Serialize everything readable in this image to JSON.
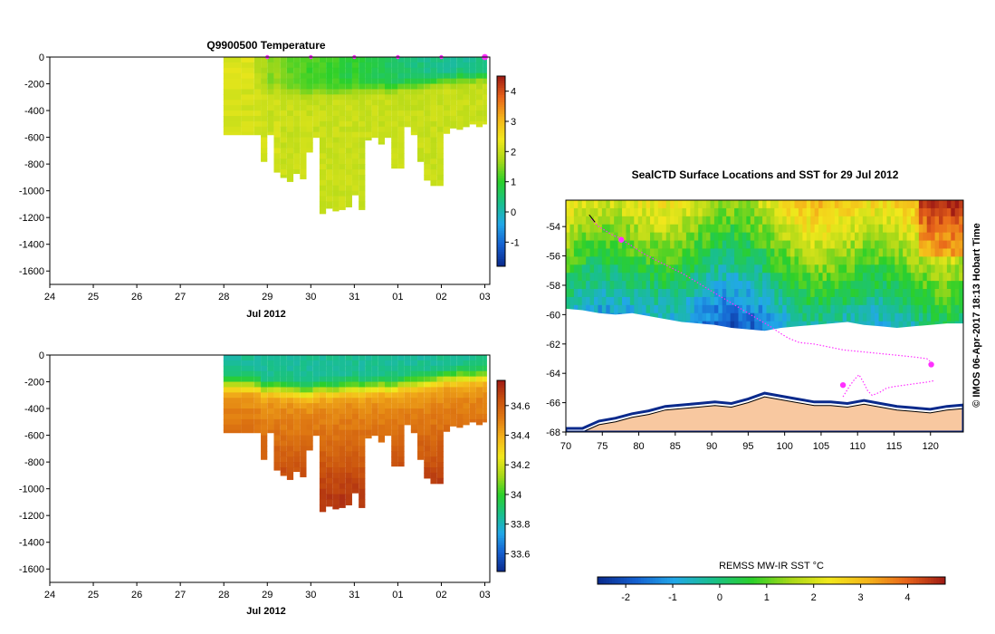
{
  "colors": {
    "temp_ramp": [
      "#0a2a8c",
      "#1560d0",
      "#22a8e8",
      "#19c08a",
      "#2bd02a",
      "#a8d818",
      "#f2e81c",
      "#f4b41a",
      "#e8641a",
      "#9e1a14"
    ],
    "sal_ramp": [
      "#0a2a8c",
      "#1560d0",
      "#22a8e8",
      "#19c08a",
      "#2bd02a",
      "#a8d818",
      "#f2e81c",
      "#f4b41a",
      "#e07a12",
      "#c8500e",
      "#9e1a14"
    ],
    "land": "#f8c8a0",
    "ice": "#ffffff",
    "track": "#ff30ff"
  },
  "chart_data": [
    {
      "type": "heatmap",
      "title": "Q9900500  Temperature",
      "xlabel": "Jul 2012",
      "ylabel": "",
      "xlim": [
        24,
        34.1
      ],
      "ylim": [
        -1700,
        0
      ],
      "xtick_labels": [
        "24",
        "25",
        "26",
        "27",
        "28",
        "29",
        "30",
        "31",
        "01",
        "02",
        "03"
      ],
      "ytick_values": [
        0,
        -200,
        -400,
        -600,
        -800,
        -1000,
        -1200,
        -1400,
        -1600
      ],
      "ytick_labels": [
        "0",
        "-200",
        "-400",
        "-600",
        "-800",
        "-1000",
        "-1200",
        "-1400",
        "-1600"
      ],
      "colorbar": {
        "min": -1.8,
        "max": 4.5,
        "tick_values": [
          4,
          3,
          2,
          1,
          0,
          -1
        ],
        "tick_labels": [
          "4",
          "3",
          "2",
          "1",
          "0",
          "-1"
        ]
      },
      "surface_markers_day": [
        29.0,
        30.0,
        31.0,
        32.0,
        33.0,
        34.0
      ],
      "profile_times": [
        28.2,
        28.4,
        28.7,
        28.85,
        29.0,
        29.15,
        29.3,
        29.45,
        29.6,
        29.75,
        29.9,
        30.05,
        30.2,
        30.35,
        30.5,
        30.65,
        30.8,
        30.95,
        31.1,
        31.25,
        31.4,
        31.55,
        31.7,
        31.85,
        32.0,
        32.15,
        32.3,
        32.45,
        32.6,
        32.75,
        32.9,
        33.05,
        33.2,
        33.35,
        33.5,
        33.65,
        33.8,
        33.95
      ],
      "profile_max_depth": [
        -580,
        -580,
        -580,
        -780,
        -580,
        -860,
        -900,
        -930,
        -870,
        -910,
        -710,
        -600,
        -1170,
        -1130,
        -1150,
        -1140,
        -1120,
        -1030,
        -1140,
        -620,
        -600,
        -650,
        -600,
        -830,
        -830,
        -520,
        -580,
        -780,
        -920,
        -960,
        -960,
        -570,
        -530,
        -540,
        -520,
        -500,
        -520,
        -500
      ],
      "profile_mld": [
        -220,
        -220,
        -230,
        -260,
        -250,
        -250,
        -260,
        -260,
        -270,
        -280,
        -280,
        -260,
        -250,
        -260,
        -260,
        -250,
        -240,
        -240,
        -250,
        -240,
        -240,
        -230,
        -240,
        -230,
        -220,
        -210,
        -210,
        -200,
        -200,
        -190,
        -180,
        -170,
        -170,
        -160,
        -160,
        -160,
        -150,
        -150
      ],
      "temp_surface": [
        2.2,
        2.2,
        1.9,
        1.8,
        1.5,
        1.6,
        1.4,
        1.3,
        1.3,
        1.2,
        1.1,
        1.2,
        1.2,
        1.0,
        1.1,
        0.9,
        0.8,
        1.0,
        0.9,
        0.8,
        0.7,
        0.7,
        0.6,
        0.6,
        0.5,
        0.5,
        0.4,
        0.4,
        0.3,
        0.4,
        0.3,
        0.2,
        0.2,
        0.3,
        0.2,
        0.2,
        0.3,
        0.2
      ],
      "temp_deep": [
        2.1,
        2.1,
        2.1,
        2.1,
        2.0,
        2.1,
        2.0,
        2.0,
        2.0,
        2.0,
        2.0,
        2.0,
        2.0,
        2.0,
        2.0,
        2.0,
        2.0,
        2.0,
        2.0,
        2.0,
        2.0,
        2.0,
        2.0,
        2.0,
        2.0,
        2.0,
        2.0,
        2.0,
        2.0,
        2.0,
        2.0,
        2.0,
        2.0,
        2.0,
        2.0,
        2.0,
        2.0,
        2.0
      ]
    },
    {
      "type": "heatmap",
      "title": "",
      "xlabel": "Jul 2012",
      "ylabel": "",
      "xlim": [
        24,
        34.1
      ],
      "ylim": [
        -1700,
        0
      ],
      "xtick_labels": [
        "24",
        "25",
        "26",
        "27",
        "28",
        "29",
        "30",
        "31",
        "01",
        "02",
        "03"
      ],
      "ytick_values": [
        0,
        -200,
        -400,
        -600,
        -800,
        -1000,
        -1200,
        -1400,
        -1600
      ],
      "ytick_labels": [
        "0",
        "-200",
        "-400",
        "-600",
        "-800",
        "-1000",
        "-1200",
        "-1400",
        "-1600"
      ],
      "colorbar": {
        "min": 33.48,
        "max": 34.77,
        "tick_values": [
          34.6,
          34.4,
          34.2,
          34.0,
          33.8,
          33.6
        ],
        "tick_labels": [
          "34.6",
          "34.4",
          "34.2",
          "34",
          "33.8",
          "33.6"
        ]
      },
      "sal_surface": 33.85,
      "sal_deep": 34.72
    },
    {
      "type": "heatmap",
      "title": "SealCTD Surface Locations and SST for 29 Jul 2012",
      "xlabel": "",
      "ylabel": "",
      "xlim": [
        70,
        124.5
      ],
      "ylim": [
        -68,
        -52.2
      ],
      "xtick_labels": [
        "70",
        "75",
        "80",
        "85",
        "90",
        "95",
        "100",
        "105",
        "110",
        "115",
        "120"
      ],
      "xtick_values": [
        70,
        75,
        80,
        85,
        90,
        95,
        100,
        105,
        110,
        115,
        120
      ],
      "ytick_labels": [
        "-54",
        "-56",
        "-58",
        "-60",
        "-62",
        "-64",
        "-66",
        "-68"
      ],
      "ytick_values": [
        -54,
        -56,
        -58,
        -60,
        -62,
        -64,
        -66,
        -68
      ],
      "sst_colorbar": {
        "label": "REMSS MW-IR SST °C",
        "min": -2.6,
        "max": 4.8,
        "tick_values": [
          -2,
          -1,
          0,
          1,
          2,
          3,
          4
        ],
        "tick_labels": [
          "-2",
          "-1",
          "0",
          "1",
          "2",
          "3",
          "4"
        ]
      },
      "track_lon": [
        73.5,
        74.5,
        75.5,
        76.5,
        77.5,
        78.0,
        79.0,
        80.5,
        82.0,
        84.0,
        86.0,
        88.0,
        90.0,
        92.0,
        94.0,
        96.0,
        98.0,
        99.5,
        100.5,
        102.0,
        104.0,
        106.0,
        108.0,
        110.0,
        112.0,
        114.0,
        116.0,
        118.0,
        119.5,
        120.2,
        120.0
      ],
      "track_lat": [
        -53.5,
        -54.0,
        -54.3,
        -54.6,
        -54.8,
        -55.0,
        -55.3,
        -55.8,
        -56.2,
        -56.7,
        -57.2,
        -57.8,
        -58.4,
        -59.0,
        -59.6,
        -60.2,
        -60.8,
        -61.3,
        -61.6,
        -61.9,
        -62.0,
        -62.2,
        -62.4,
        -62.5,
        -62.6,
        -62.7,
        -62.8,
        -62.9,
        -63.0,
        -63.3,
        -63.6
      ],
      "secondary_track_lon": [
        108.0,
        108.5,
        109.0,
        109.6,
        110.2,
        110.8,
        111.4,
        112.0,
        113.0,
        114.0,
        115.0,
        116.5,
        118.0,
        119.5,
        120.5
      ],
      "secondary_track_lat": [
        -65.6,
        -65.2,
        -64.8,
        -64.4,
        -64.1,
        -64.6,
        -65.2,
        -65.5,
        -65.3,
        -65.0,
        -64.9,
        -64.8,
        -64.7,
        -64.6,
        -64.5
      ],
      "highlight_points": [
        {
          "lon": 77.6,
          "lat": -54.9
        },
        {
          "lon": 120.1,
          "lat": -63.4
        },
        {
          "lon": 108.0,
          "lat": -64.8
        }
      ],
      "ice_edge_lat": [
        -59.6,
        -59.7,
        -59.9,
        -60.0,
        -59.9,
        -60.1,
        -60.3,
        -60.5,
        -60.6,
        -60.7,
        -60.9,
        -61.0,
        -61.1,
        -60.9,
        -60.8,
        -60.7,
        -60.6,
        -60.5,
        -60.7,
        -60.8,
        -60.9,
        -60.8,
        -60.7,
        -60.6,
        -60.6
      ],
      "coast_lat": [
        -68.0,
        -68.0,
        -67.5,
        -67.3,
        -67.0,
        -66.8,
        -66.5,
        -66.4,
        -66.3,
        -66.2,
        -66.3,
        -66.0,
        -65.6,
        -65.8,
        -66.0,
        -66.2,
        -66.2,
        -66.3,
        -66.1,
        -66.3,
        -66.5,
        -66.6,
        -66.7,
        -66.5,
        -66.4
      ]
    }
  ],
  "watermark": "© IMOS 06-Apr-2017 18:13 Hobart Time"
}
